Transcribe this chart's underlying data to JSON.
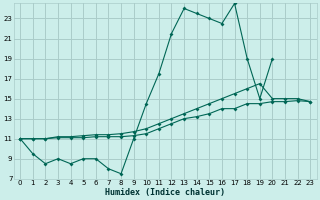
{
  "xlabel": "Humidex (Indice chaleur)",
  "bg_color": "#cceeea",
  "grid_color": "#aaccca",
  "line_color": "#006655",
  "xlim": [
    -0.5,
    23.5
  ],
  "ylim": [
    7,
    24.5
  ],
  "xticks": [
    0,
    1,
    2,
    3,
    4,
    5,
    6,
    7,
    8,
    9,
    10,
    11,
    12,
    13,
    14,
    15,
    16,
    17,
    18,
    19,
    20,
    21,
    22,
    23
  ],
  "yticks": [
    7,
    9,
    11,
    13,
    15,
    17,
    19,
    21,
    23
  ],
  "s1_x": [
    0,
    1,
    2,
    3,
    4,
    5,
    6,
    7,
    8,
    9,
    10,
    11,
    12,
    13,
    14,
    15,
    16,
    17,
    18,
    19,
    20
  ],
  "s1_y": [
    11,
    9.5,
    8.5,
    9.0,
    8.5,
    9.0,
    9.0,
    8.0,
    7.5,
    11.0,
    14.5,
    17.5,
    21.5,
    24.0,
    23.5,
    23.0,
    22.5,
    24.5,
    19.0,
    15.0,
    19.0
  ],
  "s2_x": [
    0,
    1,
    2,
    3,
    4,
    5,
    6,
    7,
    8,
    9,
    10,
    11,
    12,
    13,
    14,
    15,
    16,
    17,
    18,
    19,
    20,
    21,
    22,
    23
  ],
  "s2_y": [
    11,
    11.0,
    11.0,
    11.2,
    11.2,
    11.3,
    11.4,
    11.4,
    11.5,
    11.7,
    12.0,
    12.5,
    13.0,
    13.5,
    14.0,
    14.5,
    15.0,
    15.5,
    16.0,
    16.5,
    15.0,
    15.0,
    15.0,
    14.7
  ],
  "s3_x": [
    0,
    1,
    2,
    3,
    4,
    5,
    6,
    7,
    8,
    9,
    10,
    11,
    12,
    13,
    14,
    15,
    16,
    17,
    18,
    19,
    20,
    21,
    22,
    23
  ],
  "s3_y": [
    11,
    11.0,
    11.0,
    11.1,
    11.1,
    11.1,
    11.2,
    11.2,
    11.2,
    11.3,
    11.5,
    12.0,
    12.5,
    13.0,
    13.2,
    13.5,
    14.0,
    14.0,
    14.5,
    14.5,
    14.7,
    14.7,
    14.8,
    14.7
  ]
}
